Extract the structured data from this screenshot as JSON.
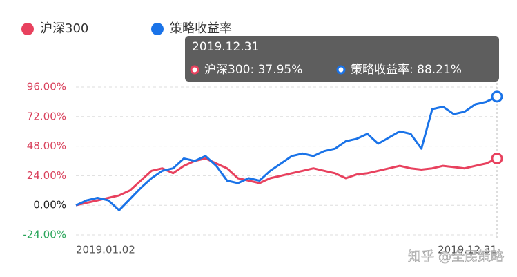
{
  "chart_data": {
    "type": "line",
    "categories": [
      "2019.01.02",
      null,
      null,
      null,
      null,
      null,
      null,
      null,
      null,
      null,
      null,
      null,
      null,
      null,
      null,
      null,
      null,
      null,
      null,
      null,
      null,
      null,
      null,
      null,
      null,
      null,
      null,
      null,
      null,
      null,
      null,
      null,
      null,
      null,
      null,
      null,
      null,
      null,
      null,
      "2019.12.31"
    ],
    "series": [
      {
        "name": "沪深300",
        "color": "#e8415e",
        "values": [
          0,
          2,
          4,
          6,
          8,
          12,
          20,
          28,
          30,
          26,
          32,
          36,
          38,
          34,
          30,
          22,
          20,
          18,
          22,
          24,
          26,
          28,
          30,
          28,
          26,
          22,
          25,
          26,
          28,
          30,
          32,
          30,
          29,
          30,
          32,
          31,
          30,
          32,
          34,
          37.95
        ]
      },
      {
        "name": "策略收益率",
        "color": "#1a73e8",
        "values": [
          0,
          4,
          6,
          4,
          -4,
          5,
          14,
          22,
          28,
          30,
          38,
          36,
          40,
          32,
          20,
          18,
          22,
          20,
          28,
          34,
          40,
          42,
          40,
          44,
          46,
          52,
          54,
          58,
          50,
          55,
          60,
          58,
          46,
          78,
          80,
          74,
          76,
          82,
          84,
          88.21
        ]
      }
    ],
    "ylim": [
      -24,
      96
    ],
    "yticks": [
      {
        "value": 96,
        "label": "96.00%"
      },
      {
        "value": 72,
        "label": "72.00%"
      },
      {
        "value": 48,
        "label": "48.00%"
      },
      {
        "value": 24,
        "label": "24.00%"
      },
      {
        "value": 0,
        "label": "0.00%"
      },
      {
        "value": -24,
        "label": "-24.00%"
      }
    ],
    "grid": true,
    "tooltip": {
      "title": "2019.12.31",
      "items": [
        "沪深300: 37.95%",
        "策略收益率: 88.21%"
      ]
    },
    "watermark": "知乎 @全民策略"
  }
}
